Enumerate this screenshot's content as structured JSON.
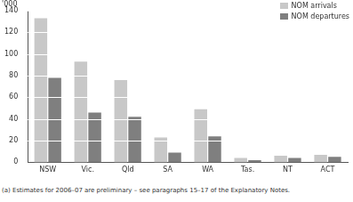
{
  "chart_data": {
    "type": "bar",
    "y_label": "'000",
    "footnote": "(a) Estimates for 2006–07 are preliminary – see paragraphs 15–17 of the Explanatory Notes.",
    "categories": [
      "NSW",
      "Vic.",
      "Qld",
      "SA",
      "WA",
      "Tas.",
      "NT",
      "ACT"
    ],
    "series": [
      {
        "name": "NOM arrivals",
        "color": "#c8c8c8",
        "values": [
          133,
          93,
          76,
          23,
          49,
          4,
          6,
          7
        ]
      },
      {
        "name": "NOM departures",
        "color": "#7f7f7f",
        "values": [
          78,
          46,
          42,
          9,
          24,
          2,
          4,
          5
        ]
      }
    ],
    "ylim": [
      0,
      140
    ],
    "yticks": [
      0,
      20,
      40,
      60,
      80,
      100,
      120,
      140
    ],
    "grid": true,
    "legend": "upper-right"
  }
}
